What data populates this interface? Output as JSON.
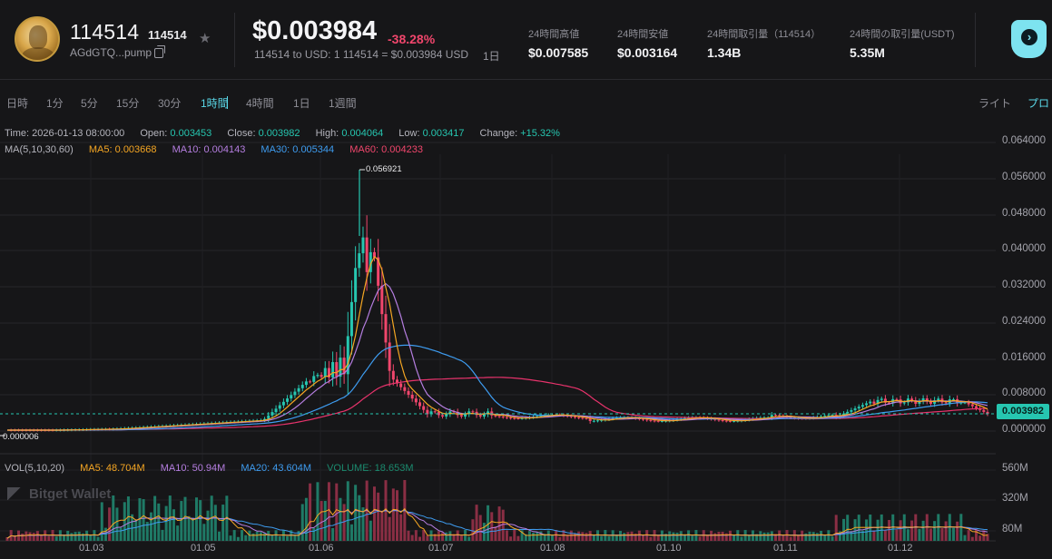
{
  "token": {
    "name": "114514",
    "symbol": "114514",
    "address": "AGdGTQ...pump",
    "price": "$0.003984",
    "change": "-38.28%",
    "conversion": "114514 to USD: 1 114514 = $0.003984 USD",
    "timeframe": "1日"
  },
  "stats": [
    {
      "label": "24時間高値",
      "value": "$0.007585"
    },
    {
      "label": "24時間安値",
      "value": "$0.003164"
    },
    {
      "label": "24時間取引量（114514）",
      "value": "1.34B"
    },
    {
      "label": "24時間の取引量(USDT)",
      "value": "5.35M"
    }
  ],
  "timeframes": [
    "日時",
    "1分",
    "5分",
    "15分",
    "30分",
    "1時間",
    "4時間",
    "1日",
    "1週間"
  ],
  "active_timeframe": "1時間",
  "theme": {
    "light": "ライト",
    "pro": "プロ"
  },
  "ohlc": {
    "time_label": "Time:",
    "time": "2026-01-13 08:00:00",
    "open_label": "Open:",
    "open": "0.003453",
    "close_label": "Close:",
    "close": "0.003982",
    "high_label": "High:",
    "high": "0.004064",
    "low_label": "Low:",
    "low": "0.003417",
    "change_label": "Change:",
    "change": "+15.32%"
  },
  "ma": {
    "title": "MA(5,10,30,60)",
    "ma5_label": "MA5:",
    "ma5": "0.003668",
    "ma10_label": "MA10:",
    "ma10": "0.004143",
    "ma30_label": "MA30:",
    "ma30": "0.005344",
    "ma60_label": "MA60:",
    "ma60": "0.004233"
  },
  "vol": {
    "title": "VOL(5,10,20)",
    "ma5_label": "MA5:",
    "ma5": "48.704M",
    "ma10_label": "MA10:",
    "ma10": "50.94M",
    "ma20_label": "MA20:",
    "ma20": "43.604M",
    "volume_label": "VOLUME:",
    "volume": "18.653M"
  },
  "watermark": "Bitget Wallet",
  "price_axis": [
    "0.064000",
    "0.056000",
    "0.048000",
    "0.040000",
    "0.032000",
    "0.024000",
    "0.016000",
    "0.008000",
    "0.000000"
  ],
  "volume_axis": [
    "560M",
    "320M",
    "80M"
  ],
  "current_price_tag": "0.003982",
  "peak_label": "0.056921",
  "low_label": "0.000006",
  "x_ticks": [
    "01.03",
    "01.05",
    "01.06",
    "01.07",
    "01.08",
    "01.10",
    "01.11",
    "01.12"
  ],
  "colors": {
    "up": "#26c6b0",
    "down": "#f0466c",
    "ma5": "#f5a623",
    "ma10": "#b57ee0",
    "ma30": "#3e9cf0",
    "ma60": "#e8336c"
  }
}
